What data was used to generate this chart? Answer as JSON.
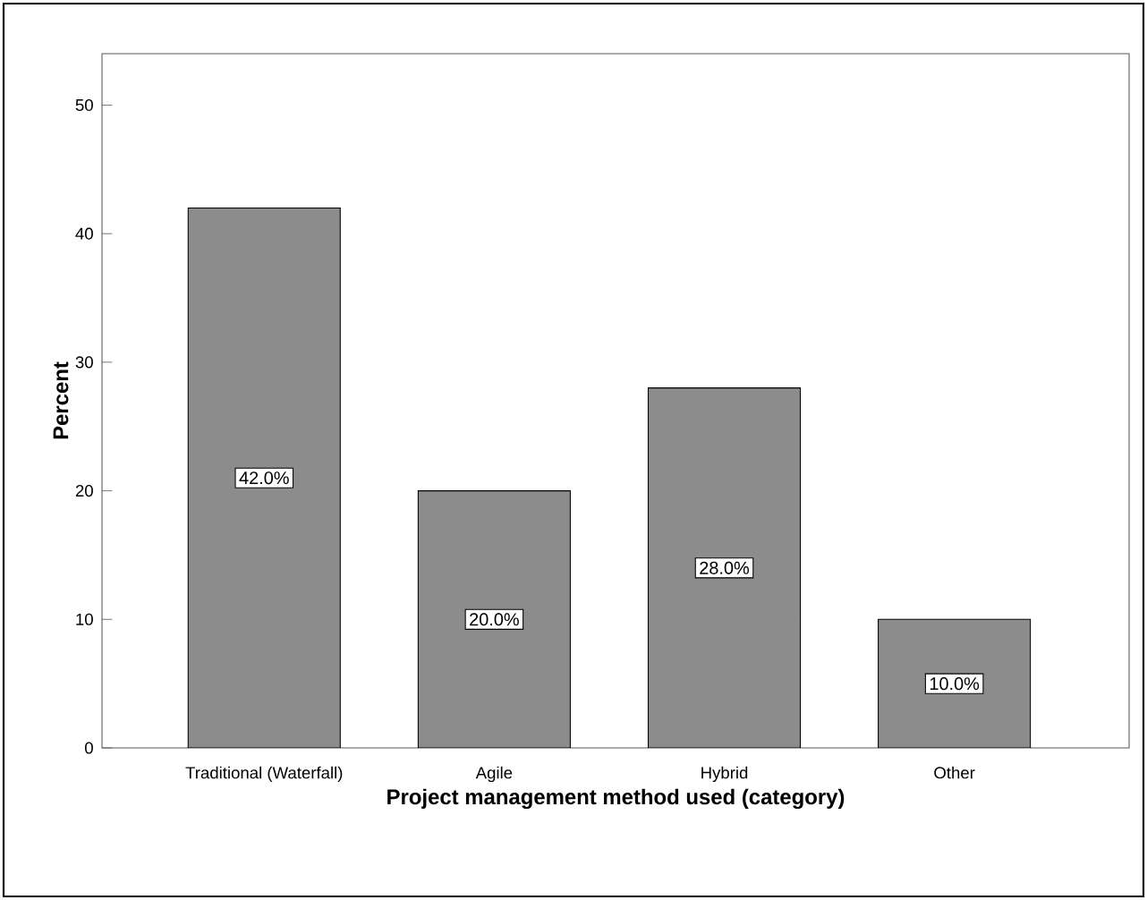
{
  "chart_data": {
    "type": "bar",
    "xlabel": "Project management method used (category)",
    "ylabel": "Percent",
    "categories": [
      "Traditional (Waterfall)",
      "Agile",
      "Hybrid",
      "Other"
    ],
    "values": [
      42,
      20,
      28,
      10
    ],
    "value_labels": [
      "42.0%",
      "20.0%",
      "28.0%",
      "10.0%"
    ],
    "color": "#8c8c8c",
    "ylim": [
      0,
      54
    ],
    "yticks": [
      0,
      10,
      20,
      30,
      40,
      50
    ]
  }
}
